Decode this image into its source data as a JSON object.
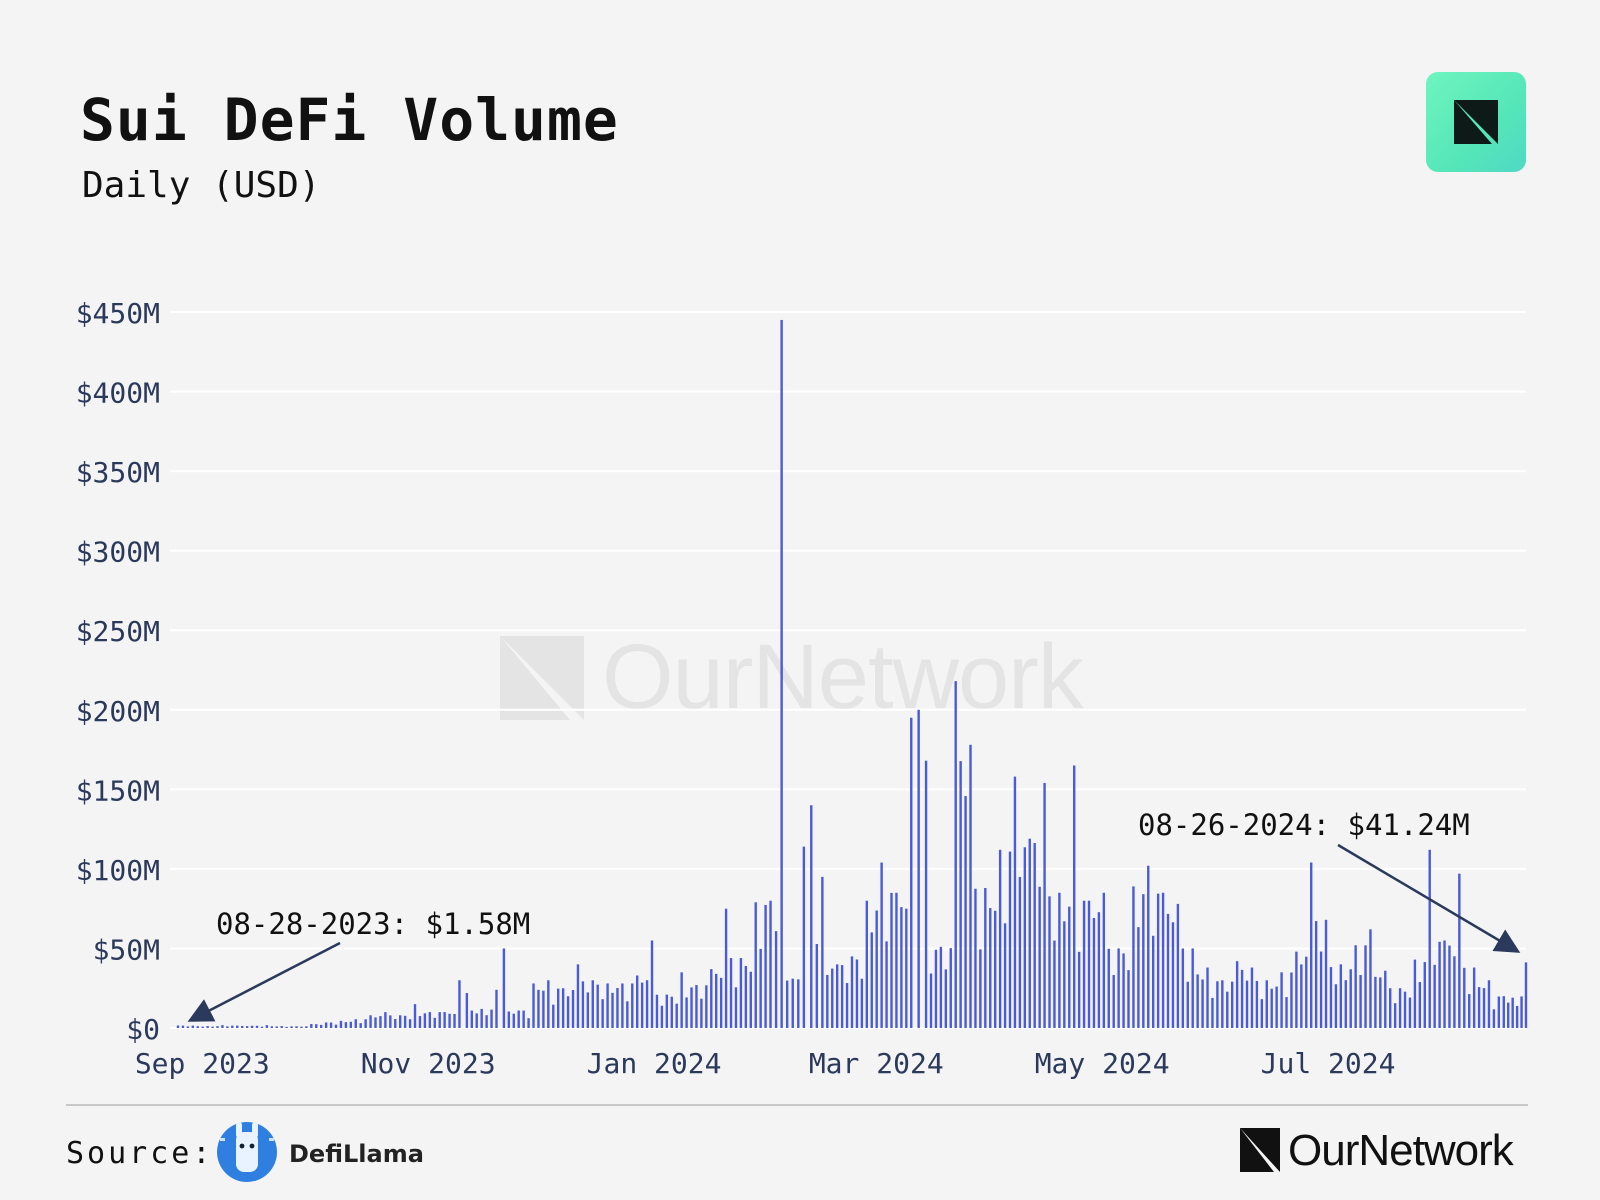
{
  "header": {
    "title": "Sui DeFi Volume",
    "subtitle": "Daily (USD)"
  },
  "watermark": {
    "text": "OurNetwork"
  },
  "footer": {
    "source_label": "Source:",
    "source_name": "DefiLlama",
    "brand": "OurNetwork"
  },
  "colors": {
    "background": "#f4f4f4",
    "bar": "#4a5bd9",
    "axis_text": "#2b3a5c",
    "badge": "#5eecbf"
  },
  "icons": [
    "ournetwork-logo-icon",
    "defillama-logo-icon",
    "arrow-icon"
  ],
  "chart_data": {
    "type": "bar",
    "title": "Sui DeFi Volume",
    "subtitle": "Daily (USD)",
    "xlabel": "",
    "ylabel": "",
    "x_start": "2023-08-28",
    "x_end": "2024-08-26",
    "xticks": [
      {
        "date": "2023-09-01",
        "label": "Sep 2023"
      },
      {
        "date": "2023-11-01",
        "label": "Nov 2023"
      },
      {
        "date": "2024-01-01",
        "label": "Jan 2024"
      },
      {
        "date": "2024-03-01",
        "label": "Mar 2024"
      },
      {
        "date": "2024-05-01",
        "label": "May 2024"
      },
      {
        "date": "2024-07-01",
        "label": "Jul 2024"
      }
    ],
    "yticks": [
      {
        "value": 0,
        "label": "$0"
      },
      {
        "value": 50,
        "label": "$50M"
      },
      {
        "value": 100,
        "label": "$100M"
      },
      {
        "value": 150,
        "label": "$150M"
      },
      {
        "value": 200,
        "label": "$200M"
      },
      {
        "value": 250,
        "label": "$250M"
      },
      {
        "value": 300,
        "label": "$300M"
      },
      {
        "value": 350,
        "label": "$350M"
      },
      {
        "value": 400,
        "label": "$400M"
      },
      {
        "value": 450,
        "label": "$450M"
      }
    ],
    "ylim": [
      0,
      450
    ],
    "y_unit": "USD millions",
    "grid": "horizontal",
    "annotations": [
      {
        "date": "2023-08-28",
        "value": 1.58,
        "label": "08-28-2023: $1.58M"
      },
      {
        "date": "2024-08-26",
        "value": 41.24,
        "label": "08-26-2024: $41.24M"
      }
    ],
    "series": [
      {
        "values": [
          {
            "date": "2023-08-28",
            "value": 1.58
          },
          {
            "date": "2023-09-01",
            "value": 1.5
          },
          {
            "date": "2023-09-05",
            "value": 1.2
          },
          {
            "date": "2023-09-09",
            "value": 1.8
          },
          {
            "date": "2023-09-13",
            "value": 1.5
          },
          {
            "date": "2023-09-17",
            "value": 1.4
          },
          {
            "date": "2023-09-21",
            "value": 1.8
          },
          {
            "date": "2023-09-25",
            "value": 1.2
          },
          {
            "date": "2023-09-29",
            "value": 1.1
          },
          {
            "date": "2023-10-03",
            "value": 2.5
          },
          {
            "date": "2023-10-07",
            "value": 3.5
          },
          {
            "date": "2023-10-11",
            "value": 4.5
          },
          {
            "date": "2023-10-15",
            "value": 5.5
          },
          {
            "date": "2023-10-19",
            "value": 8
          },
          {
            "date": "2023-10-23",
            "value": 10
          },
          {
            "date": "2023-10-27",
            "value": 8
          },
          {
            "date": "2023-10-31",
            "value": 15
          },
          {
            "date": "2023-11-04",
            "value": 10
          },
          {
            "date": "2023-11-08",
            "value": 10
          },
          {
            "date": "2023-11-12",
            "value": 30
          },
          {
            "date": "2023-11-14",
            "value": 22
          },
          {
            "date": "2023-11-18",
            "value": 12
          },
          {
            "date": "2023-11-22",
            "value": 24
          },
          {
            "date": "2023-11-24",
            "value": 50
          },
          {
            "date": "2023-11-28",
            "value": 11
          },
          {
            "date": "2023-12-02",
            "value": 28
          },
          {
            "date": "2023-12-06",
            "value": 30
          },
          {
            "date": "2023-12-10",
            "value": 25
          },
          {
            "date": "2023-12-14",
            "value": 40
          },
          {
            "date": "2023-12-18",
            "value": 30
          },
          {
            "date": "2023-12-22",
            "value": 28
          },
          {
            "date": "2023-12-26",
            "value": 28
          },
          {
            "date": "2023-12-30",
            "value": 33
          },
          {
            "date": "2024-01-03",
            "value": 55
          },
          {
            "date": "2024-01-07",
            "value": 21
          },
          {
            "date": "2024-01-11",
            "value": 35
          },
          {
            "date": "2024-01-15",
            "value": 27
          },
          {
            "date": "2024-01-19",
            "value": 37
          },
          {
            "date": "2024-01-23",
            "value": 75
          },
          {
            "date": "2024-01-27",
            "value": 44
          },
          {
            "date": "2024-01-31",
            "value": 79
          },
          {
            "date": "2024-02-04",
            "value": 80
          },
          {
            "date": "2024-02-07",
            "value": 445
          },
          {
            "date": "2024-02-10",
            "value": 31
          },
          {
            "date": "2024-02-13",
            "value": 114
          },
          {
            "date": "2024-02-15",
            "value": 140
          },
          {
            "date": "2024-02-18",
            "value": 95
          },
          {
            "date": "2024-02-22",
            "value": 40
          },
          {
            "date": "2024-02-26",
            "value": 45
          },
          {
            "date": "2024-03-01",
            "value": 80
          },
          {
            "date": "2024-03-05",
            "value": 104
          },
          {
            "date": "2024-03-09",
            "value": 85
          },
          {
            "date": "2024-03-13",
            "value": 195
          },
          {
            "date": "2024-03-15",
            "value": 200
          },
          {
            "date": "2024-03-17",
            "value": 168
          },
          {
            "date": "2024-03-21",
            "value": 51
          },
          {
            "date": "2024-03-25",
            "value": 218
          },
          {
            "date": "2024-03-29",
            "value": 178
          },
          {
            "date": "2024-04-02",
            "value": 88
          },
          {
            "date": "2024-04-06",
            "value": 112
          },
          {
            "date": "2024-04-10",
            "value": 158
          },
          {
            "date": "2024-04-14",
            "value": 119
          },
          {
            "date": "2024-04-18",
            "value": 154
          },
          {
            "date": "2024-04-22",
            "value": 85
          },
          {
            "date": "2024-04-26",
            "value": 165
          },
          {
            "date": "2024-04-30",
            "value": 80
          },
          {
            "date": "2024-05-04",
            "value": 85
          },
          {
            "date": "2024-05-08",
            "value": 50
          },
          {
            "date": "2024-05-12",
            "value": 89
          },
          {
            "date": "2024-05-16",
            "value": 102
          },
          {
            "date": "2024-05-20",
            "value": 85
          },
          {
            "date": "2024-05-24",
            "value": 78
          },
          {
            "date": "2024-05-28",
            "value": 50
          },
          {
            "date": "2024-06-01",
            "value": 38
          },
          {
            "date": "2024-06-05",
            "value": 30
          },
          {
            "date": "2024-06-09",
            "value": 42
          },
          {
            "date": "2024-06-13",
            "value": 38
          },
          {
            "date": "2024-06-17",
            "value": 30
          },
          {
            "date": "2024-06-21",
            "value": 35
          },
          {
            "date": "2024-06-25",
            "value": 48
          },
          {
            "date": "2024-06-29",
            "value": 104
          },
          {
            "date": "2024-07-03",
            "value": 68
          },
          {
            "date": "2024-07-07",
            "value": 40
          },
          {
            "date": "2024-07-11",
            "value": 52
          },
          {
            "date": "2024-07-15",
            "value": 62
          },
          {
            "date": "2024-07-19",
            "value": 36
          },
          {
            "date": "2024-07-23",
            "value": 25
          },
          {
            "date": "2024-07-27",
            "value": 43
          },
          {
            "date": "2024-07-31",
            "value": 112
          },
          {
            "date": "2024-08-04",
            "value": 55
          },
          {
            "date": "2024-08-08",
            "value": 97
          },
          {
            "date": "2024-08-12",
            "value": 38
          },
          {
            "date": "2024-08-16",
            "value": 30
          },
          {
            "date": "2024-08-20",
            "value": 20
          },
          {
            "date": "2024-08-26",
            "value": 41.24
          }
        ]
      }
    ]
  }
}
